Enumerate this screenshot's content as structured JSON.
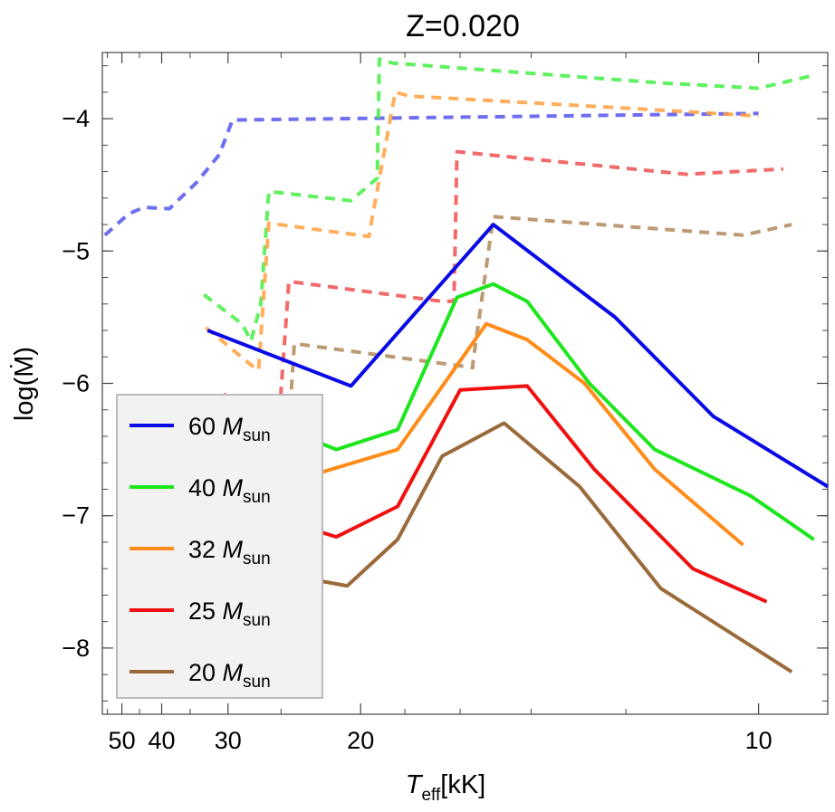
{
  "chart_data": {
    "type": "line",
    "title": "Z=0.020",
    "xlabel": {
      "main": "T",
      "sub": "eff",
      "rest": "[kK]"
    },
    "ylabel": "log(Ṁ)",
    "x_scale": "reciprocal",
    "xlim": [
      57,
      9.2
    ],
    "ylim": [
      -8.5,
      -3.5
    ],
    "x_ticks": [
      50,
      40,
      30,
      20,
      10
    ],
    "x_minor_ticks": [
      55,
      45,
      35,
      25,
      18,
      16,
      14,
      12
    ],
    "y_ticks": [
      -4,
      -5,
      -6,
      -7,
      -8
    ],
    "legend_position": "bottom-left",
    "series": [
      {
        "name": "60",
        "color": "#0a0ae6",
        "style": "solid",
        "x": [
          32.5,
          20.5,
          15,
          12.2,
          10.6,
          9.2
        ],
        "y": [
          -5.6,
          -6.02,
          -4.8,
          -5.5,
          -6.25,
          -6.78
        ]
      },
      {
        "name": "40",
        "color": "#1de61d",
        "style": "solid",
        "x": [
          27.3,
          21.3,
          18.3,
          16.1,
          15,
          14.1,
          12.7,
          11.5,
          10.1,
          9.35
        ],
        "y": [
          -6.25,
          -6.5,
          -6.35,
          -5.35,
          -5.25,
          -5.38,
          -6.0,
          -6.5,
          -6.85,
          -7.18
        ]
      },
      {
        "name": "32",
        "color": "#ff8c1a",
        "style": "solid",
        "x": [
          27.3,
          23.6,
          18.3,
          15.2,
          14.1,
          12.8,
          11.5,
          10.2
        ],
        "y": [
          -6.55,
          -6.72,
          -6.5,
          -5.55,
          -5.67,
          -6.0,
          -6.65,
          -7.22
        ]
      },
      {
        "name": "25",
        "color": "#f01010",
        "style": "solid",
        "x": [
          27.3,
          25.0,
          21.3,
          18.3,
          16.0,
          14.1,
          12.6,
          10.9,
          9.9
        ],
        "y": [
          -6.9,
          -7.03,
          -7.16,
          -6.93,
          -6.05,
          -6.02,
          -6.65,
          -7.4,
          -7.65
        ]
      },
      {
        "name": "20",
        "color": "#9a6a3a",
        "style": "solid",
        "x": [
          26.8,
          25.3,
          23.4,
          20.7,
          18.3,
          16.6,
          14.7,
          12.9,
          11.4,
          9.6
        ],
        "y": [
          -7.28,
          -7.38,
          -7.47,
          -7.53,
          -7.18,
          -6.55,
          -6.3,
          -6.78,
          -7.55,
          -8.18
        ]
      },
      {
        "color": "#5555ee",
        "style": "dashed",
        "x": [
          56,
          48,
          44,
          38.5,
          34,
          31,
          29.5,
          10.0
        ],
        "y": [
          -4.88,
          -4.72,
          -4.67,
          -4.68,
          -4.48,
          -4.27,
          -4.01,
          -3.96
        ]
      },
      {
        "color": "#44ee44",
        "style": "dashed",
        "x": [
          33,
          28.5,
          27.6,
          26.7,
          26.0,
          20.5,
          19.2,
          19.1,
          18.5,
          11.4,
          10.0,
          9.4
        ],
        "y": [
          -5.33,
          -5.55,
          -5.68,
          -5.4,
          -4.55,
          -4.62,
          -4.45,
          -3.55,
          -3.58,
          -3.73,
          -3.77,
          -3.68
        ]
      },
      {
        "color": "#ffa040",
        "style": "dashed",
        "x": [
          32.7,
          27.3,
          26.9,
          26.0,
          19.6,
          18.4,
          17.8,
          12.0,
          10.0
        ],
        "y": [
          -5.58,
          -5.88,
          -5.9,
          -4.79,
          -4.89,
          -3.8,
          -3.83,
          -3.92,
          -3.98
        ]
      },
      {
        "color": "#f05050",
        "style": "dashed",
        "x": [
          30.5,
          26.3,
          25.4,
          25.3,
          24.4,
          16.6,
          16.2,
          16.1,
          11.0,
          9.7
        ],
        "y": [
          -6.08,
          -6.3,
          -6.43,
          -6.45,
          -5.23,
          -5.38,
          -5.38,
          -4.25,
          -4.42,
          -4.38
        ]
      },
      {
        "color": "#b0885a",
        "style": "dashed",
        "x": [
          28.0,
          26.2,
          24.8,
          24.0,
          15.6,
          15.6,
          15.0,
          10.2,
          9.6
        ],
        "y": [
          -6.67,
          -6.83,
          -6.95,
          -5.7,
          -5.88,
          -5.85,
          -4.74,
          -4.88,
          -4.8
        ]
      }
    ],
    "legend": [
      {
        "mass": "60",
        "symbol": "M",
        "sub": "sun",
        "color": "#0a0ae6"
      },
      {
        "mass": "40",
        "symbol": "M",
        "sub": "sun",
        "color": "#1de61d"
      },
      {
        "mass": "32",
        "symbol": "M",
        "sub": "sun",
        "color": "#ff8c1a"
      },
      {
        "mass": "25",
        "symbol": "M",
        "sub": "sun",
        "color": "#f01010"
      },
      {
        "mass": "20",
        "symbol": "M",
        "sub": "sun",
        "color": "#9a6a3a"
      }
    ]
  }
}
